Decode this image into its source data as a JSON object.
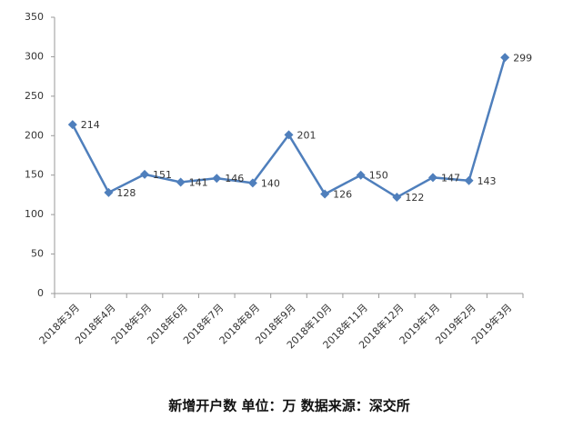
{
  "chart_data": {
    "type": "line",
    "title": "新增开户数 单位：万 数据来源：深交所",
    "categories": [
      "2018年3月",
      "2018年4月",
      "2018年5月",
      "2018年6月",
      "2018年7月",
      "2018年8月",
      "2018年9月",
      "2018年10月",
      "2018年11月",
      "2018年12月",
      "2019年1月",
      "2019年2月",
      "2019年3月"
    ],
    "values": [
      214,
      128,
      151,
      141,
      146,
      140,
      201,
      126,
      150,
      122,
      147,
      143,
      299
    ],
    "color": "#4f7fbc",
    "ylim": [
      0,
      350
    ],
    "yticks": [
      0,
      50,
      100,
      150,
      200,
      250,
      300,
      350
    ],
    "grid": false
  }
}
